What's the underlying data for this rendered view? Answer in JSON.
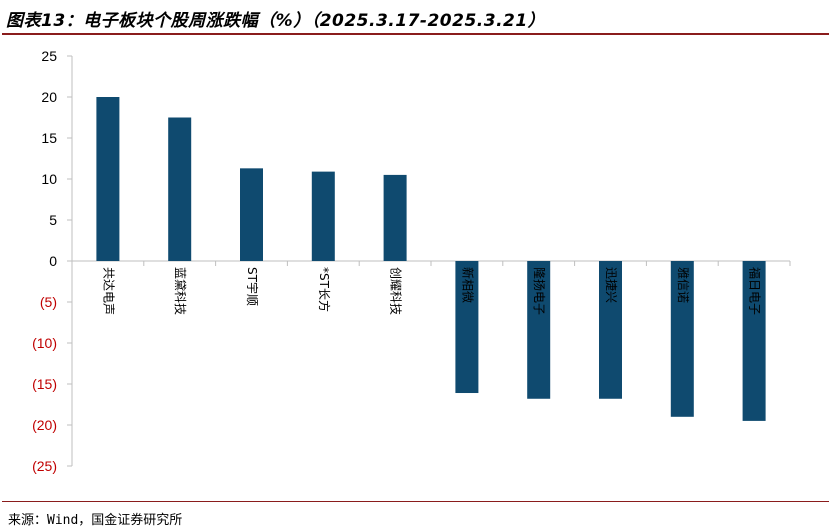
{
  "title": "图表13：电子板块个股周涨跌幅（%）（2025.3.17-2025.3.21）",
  "source": "来源：Wind，国金证券研究所",
  "colors": {
    "bar": "#0f4a6f",
    "axis": "#bfbfbf",
    "negative_tick": "#c00000",
    "positive_tick": "#000000",
    "rule": "#8a1c1c"
  },
  "chart_data": {
    "type": "bar",
    "title": "",
    "xlabel": "",
    "ylabel": "",
    "ylim": [
      -25,
      25
    ],
    "ytick_step": 5,
    "ytick_labels": [
      "25",
      "20",
      "15",
      "10",
      "5",
      "0",
      "(5)",
      "(10)",
      "(15)",
      "(20)",
      "(25)"
    ],
    "categories": [
      "共达电声",
      "蓝黛科技",
      "ST宇顺",
      "*ST长方",
      "创耀科技",
      "新相微",
      "隆扬电子",
      "迅捷兴",
      "雅信诺",
      "福日电子"
    ],
    "values": [
      20.0,
      17.5,
      11.3,
      10.9,
      10.5,
      -16.1,
      -16.8,
      -16.8,
      -19.0,
      -19.5
    ],
    "grid": false,
    "legend": "none"
  }
}
